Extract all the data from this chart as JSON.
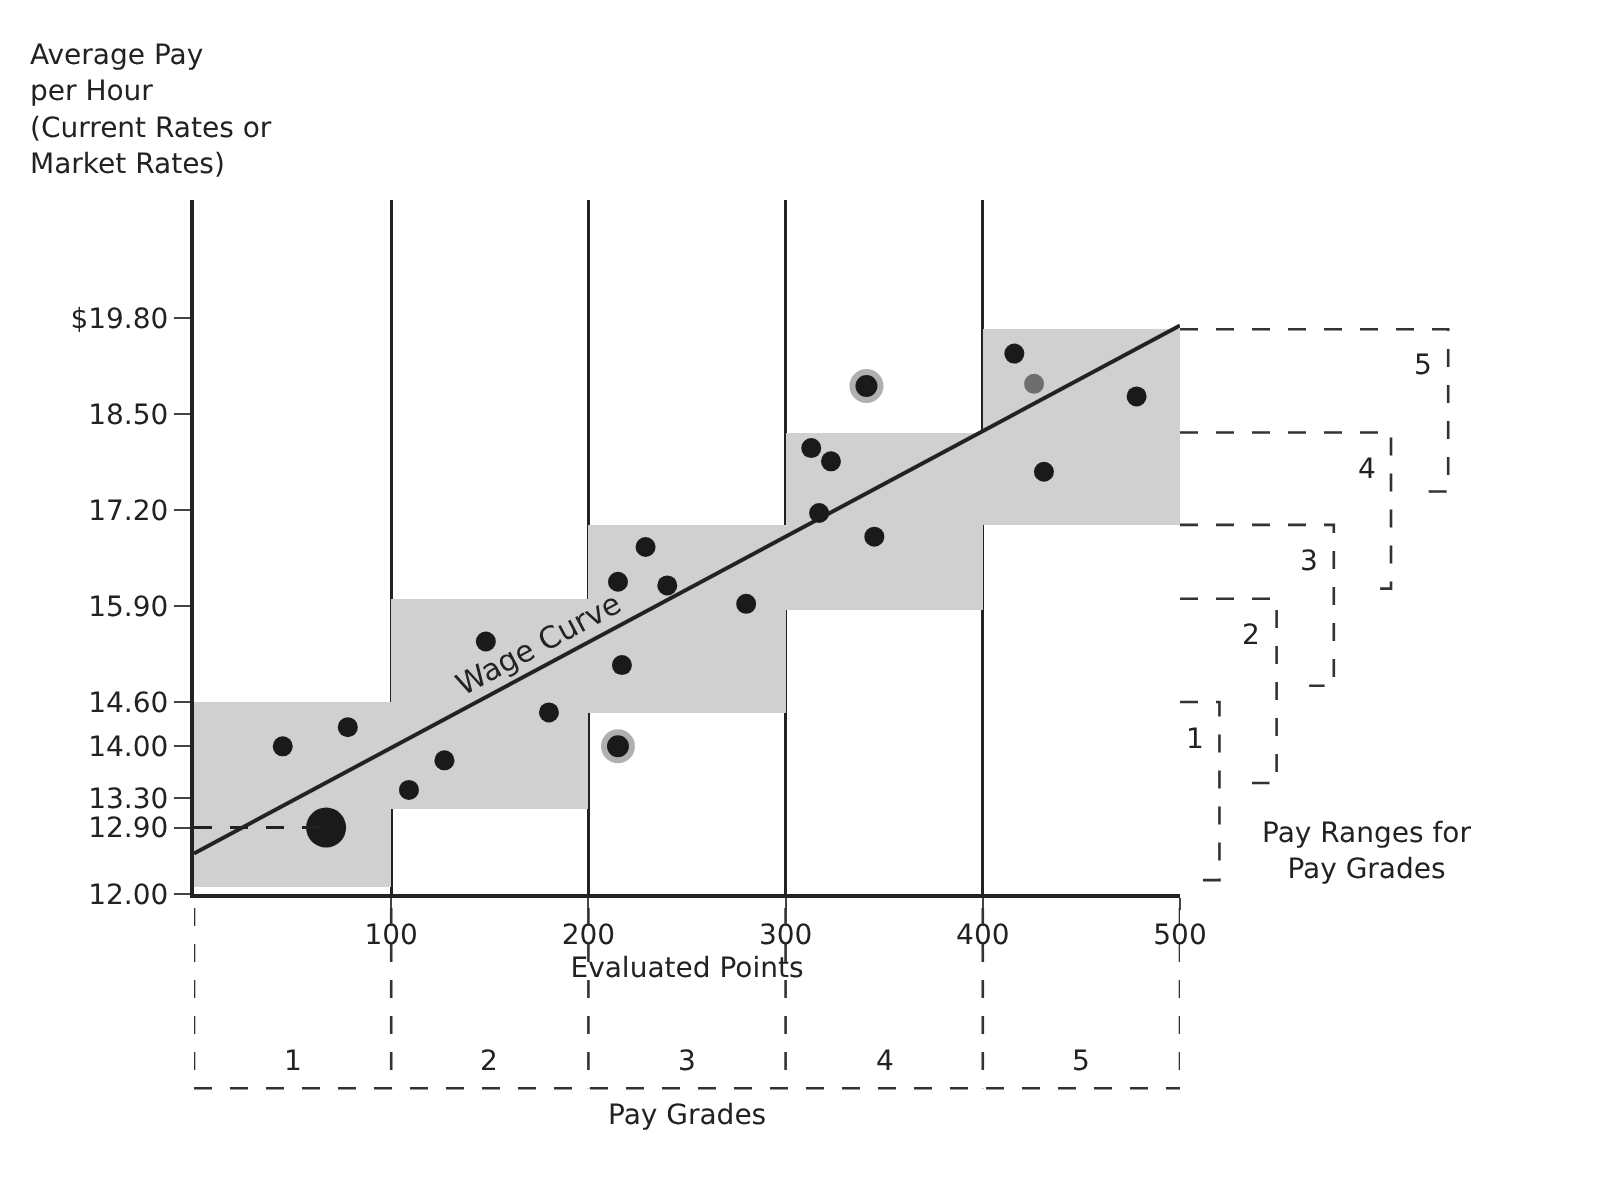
{
  "chart_data": {
    "type": "scatter",
    "ylabel": "Average Pay\nper Hour\n(Current Rates or\nMarket Rates)",
    "xlabel": "Evaluated Points",
    "xlim": [
      0,
      500
    ],
    "xticks": [
      100,
      200,
      300,
      400,
      500
    ],
    "ylim": [
      12,
      21.4
    ],
    "yticks": [
      {
        "value": 12,
        "label": "12.00"
      },
      {
        "value": 12.9,
        "label": "12.90"
      },
      {
        "value": 13.3,
        "label": "13.30"
      },
      {
        "value": 14,
        "label": "14.00"
      },
      {
        "value": 14.6,
        "label": "14.60"
      },
      {
        "value": 15.9,
        "label": "15.90"
      },
      {
        "value": 17.2,
        "label": "17.20"
      },
      {
        "value": 18.5,
        "label": "18.50"
      },
      {
        "value": 19.8,
        "label": "$19.80"
      }
    ],
    "grid": "x",
    "marker": "circle",
    "series": [
      {
        "type": "bar",
        "color": "#d0d0d0",
        "x": [
          50,
          150,
          250,
          350,
          450
        ],
        "base": [
          12.1,
          13.15,
          14.45,
          15.85,
          17.0
        ],
        "values": [
          2.5,
          2.85,
          2.55,
          2.4,
          2.65
        ]
      },
      {
        "type": "line",
        "name": "Wage Curve",
        "color": "#222222",
        "marker": "none",
        "x": [
          0,
          500
        ],
        "values": [
          12.55,
          19.7
        ]
      },
      {
        "x": [
          45,
          78,
          109,
          127,
          148,
          180,
          215,
          217,
          229,
          240,
          280,
          313,
          323,
          317,
          345,
          416,
          426,
          478,
          431
        ],
        "values": [
          14.0,
          14.26,
          13.41,
          13.81,
          15.42,
          14.46,
          16.23,
          15.1,
          16.7,
          16.18,
          15.93,
          18.04,
          17.86,
          17.16,
          16.84,
          19.32,
          18.91,
          18.74,
          17.72
        ],
        "colors": [
          "#1a1a1a",
          "#1a1a1a",
          "#1a1a1a",
          "#1a1a1a",
          "#1a1a1a",
          "#1a1a1a",
          "#1a1a1a",
          "#1a1a1a",
          "#1a1a1a",
          "#1a1a1a",
          "#1a1a1a",
          "#1a1a1a",
          "#1a1a1a",
          "#1a1a1a",
          "#1a1a1a",
          "#1a1a1a",
          "#6e6e6e",
          "#1a1a1a",
          "#1a1a1a"
        ]
      },
      {
        "color": "#1a1a1a",
        "x": [
          67
        ],
        "values": [
          12.9
        ]
      },
      {
        "color": "#1a1a1a",
        "x": [
          215,
          341
        ],
        "values": [
          14.0,
          18.88
        ]
      }
    ],
    "ref_lines": [
      {
        "axis": "y",
        "value": 12.9,
        "line_style": "dashed"
      }
    ],
    "annotations": [
      "1",
      "2",
      "3",
      "4",
      "5",
      "1",
      "2",
      "3",
      "4",
      "5",
      "Pay Grades",
      "Pay Ranges for\nPay Grades"
    ]
  }
}
